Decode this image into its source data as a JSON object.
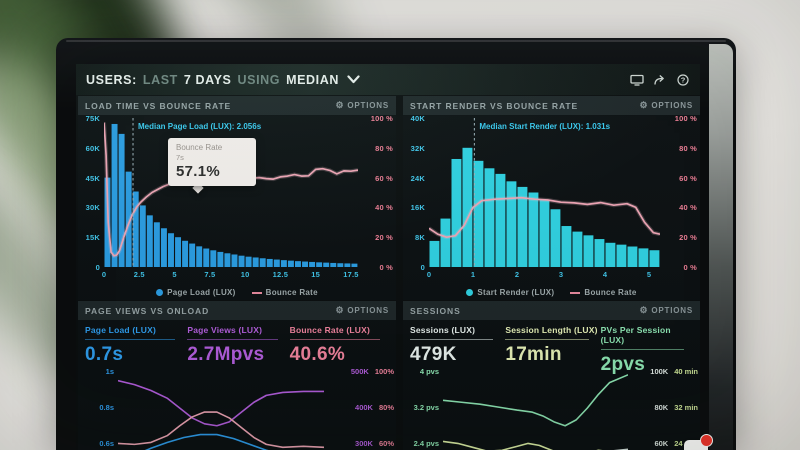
{
  "labels": {
    "options": "OPTIONS"
  },
  "colors": {
    "dashboard_bg": "#0a0e0f",
    "panel_bg": "#0b1012",
    "panel_header_bg": "#1e2729",
    "cyan_axis": "#41c8ec",
    "pink_axis": "#ef7f96",
    "blue_bars": "#2a9de3",
    "cyan_bars": "#2fd2e2",
    "pink_line": "#f0a6b6",
    "purple": "#b55fe0",
    "mint": "#8fe8b5",
    "lime": "#e7f2b8"
  },
  "header": {
    "users": "USERS:",
    "range_prefix": "LAST",
    "range": "7 DAYS",
    "using": "USING",
    "metric": "MEDIAN",
    "icons": [
      "monitor-icon",
      "share-icon",
      "help-icon"
    ]
  },
  "panels": {
    "load_time": {
      "title": "LOAD TIME VS BOUNCE RATE",
      "median_label": "Median Page Load (LUX): 2.056s",
      "tooltip": {
        "title": "Bounce Rate",
        "x_value": "7s",
        "value": "57.1%"
      },
      "legend": [
        {
          "label": "Page Load (LUX)",
          "color": "#2a9de3",
          "marker": "dot"
        },
        {
          "label": "Bounce Rate",
          "color": "#e8899f",
          "marker": "line"
        }
      ],
      "chart": {
        "type": "histogram+line",
        "bar_color": "#2a9de3",
        "line_color": "#f0a6b6",
        "line_glow": "#f5c2cd",
        "x_range": [
          0,
          18
        ],
        "bar_width_x": 0.5,
        "x_ticks": [
          "0",
          "2.5",
          "5",
          "7.5",
          "10",
          "12.5",
          "15",
          "17.5"
        ],
        "x_tick_vals": [
          0,
          2.5,
          5,
          7.5,
          10,
          12.5,
          15,
          17.5
        ],
        "y_left_ticks": [
          "75K",
          "60K",
          "45K",
          "30K",
          "15K",
          "0"
        ],
        "y_left_max": 75,
        "y_right_ticks": [
          "100 %",
          "80 %",
          "60 %",
          "40 %",
          "20 %",
          "0 %"
        ],
        "y_right_max": 100,
        "median_x": 2.056,
        "bars_k": [
          45,
          72,
          67,
          48,
          38,
          31,
          26,
          22.5,
          19.5,
          17,
          15,
          13.2,
          11.8,
          10.4,
          9.3,
          8.4,
          7.6,
          6.9,
          6.3,
          5.7,
          5.2,
          4.8,
          4.4,
          4.05,
          3.75,
          3.45,
          3.2,
          2.95,
          2.75,
          2.55,
          2.35,
          2.2,
          2.05,
          1.9,
          1.8,
          1.7
        ],
        "line_pts": [
          [
            0,
            97
          ],
          [
            0.15,
            75
          ],
          [
            0.3,
            30
          ],
          [
            0.5,
            10
          ],
          [
            0.7,
            7.5
          ],
          [
            0.9,
            8
          ],
          [
            1.1,
            11
          ],
          [
            1.4,
            20
          ],
          [
            1.7,
            28
          ],
          [
            2.0,
            35
          ],
          [
            2.3,
            40
          ],
          [
            2.6,
            43.5
          ],
          [
            3.0,
            47
          ],
          [
            3.4,
            50
          ],
          [
            3.8,
            52
          ],
          [
            4.2,
            54
          ],
          [
            4.6,
            55.5
          ],
          [
            5.0,
            56.5
          ],
          [
            5.5,
            57
          ],
          [
            6.0,
            57.5
          ],
          [
            6.5,
            57.3
          ],
          [
            7.0,
            57.1
          ],
          [
            7.5,
            58
          ],
          [
            8.0,
            58.5
          ],
          [
            8.5,
            59
          ],
          [
            9.0,
            58.3
          ],
          [
            9.5,
            57.8
          ],
          [
            10.0,
            58.5
          ],
          [
            10.5,
            59.5
          ],
          [
            11.0,
            60
          ],
          [
            11.5,
            59.3
          ],
          [
            12.0,
            59
          ],
          [
            12.5,
            60.5
          ],
          [
            13.0,
            61
          ],
          [
            13.5,
            62
          ],
          [
            14.0,
            61
          ],
          [
            14.5,
            61.2
          ],
          [
            15.0,
            65.5
          ],
          [
            15.5,
            66
          ],
          [
            16.0,
            64.8
          ],
          [
            16.5,
            62.5
          ],
          [
            17.0,
            64.5
          ],
          [
            17.5,
            64.3
          ],
          [
            18.0,
            65
          ]
        ]
      }
    },
    "start_render": {
      "title": "START RENDER VS BOUNCE RATE",
      "median_label": "Median Start Render (LUX): 1.031s",
      "legend": [
        {
          "label": "Start Render (LUX)",
          "color": "#2fd2e2",
          "marker": "dot"
        },
        {
          "label": "Bounce Rate",
          "color": "#e8899f",
          "marker": "line"
        }
      ],
      "chart": {
        "type": "histogram+line",
        "bar_color": "#2fd2e2",
        "line_color": "#f0a6b6",
        "line_glow": "#f5c2cd",
        "x_range": [
          0,
          5.25
        ],
        "bar_width_x": 0.25,
        "x_ticks": [
          "0",
          "1",
          "2",
          "3",
          "4",
          "5"
        ],
        "x_tick_vals": [
          0,
          1,
          2,
          3,
          4,
          5
        ],
        "y_left_ticks": [
          "40K",
          "32K",
          "24K",
          "16K",
          "8K",
          "0"
        ],
        "y_left_max": 40,
        "y_right_ticks": [
          "100 %",
          "80 %",
          "60 %",
          "40 %",
          "20 %",
          "0 %"
        ],
        "y_right_max": 100,
        "median_x": 1.031,
        "bars_k": [
          7,
          13,
          29,
          32,
          28.5,
          26.5,
          25,
          23,
          21.5,
          20,
          18,
          15.5,
          11,
          9.5,
          8.5,
          7.5,
          6.5,
          6,
          5.5,
          5,
          4.5
        ],
        "line_pts": [
          [
            0,
            26
          ],
          [
            0.2,
            22
          ],
          [
            0.4,
            20
          ],
          [
            0.6,
            21
          ],
          [
            0.8,
            28
          ],
          [
            1.0,
            40
          ],
          [
            1.2,
            44.5
          ],
          [
            1.5,
            45.5
          ],
          [
            1.8,
            46
          ],
          [
            2.1,
            46.5
          ],
          [
            2.4,
            45.5
          ],
          [
            2.7,
            45
          ],
          [
            3.0,
            43.5
          ],
          [
            3.3,
            43
          ],
          [
            3.6,
            42
          ],
          [
            3.9,
            43.2
          ],
          [
            4.2,
            41.5
          ],
          [
            4.5,
            42.5
          ],
          [
            4.7,
            40
          ],
          [
            4.9,
            30
          ],
          [
            5.1,
            23
          ],
          [
            5.25,
            22
          ]
        ]
      }
    },
    "page_views": {
      "title": "PAGE VIEWS VS ONLOAD",
      "metrics": [
        {
          "label": "Page Load (LUX)",
          "value": "0.7s",
          "color": "#2f9ff0"
        },
        {
          "label": "Page Views (LUX)",
          "value": "2.7Mpvs",
          "color": "#b55fe0"
        },
        {
          "label": "Bounce Rate (LUX)",
          "value": "40.6%",
          "color": "#f2849f"
        }
      ],
      "chart": {
        "type": "line",
        "left_tick_color": "#2f9ff0",
        "left_ticks": [
          {
            "label": "1s",
            "f": 0.04
          },
          {
            "label": "0.8s",
            "f": 0.4
          },
          {
            "label": "0.6s",
            "f": 0.76
          }
        ],
        "right_a_color": "#b55fe0",
        "right_b_color": "#f2849f",
        "right_ticks": [
          {
            "a": "500K",
            "b": "100%",
            "f": 0.04
          },
          {
            "a": "400K",
            "b": "80%",
            "f": 0.4
          },
          {
            "a": "300K",
            "b": "60%",
            "f": 0.76
          }
        ],
        "lines": [
          {
            "name": "page-views-line",
            "color": "#b55fe0",
            "pts": [
              [
                0,
                16
              ],
              [
                8,
                20
              ],
              [
                16,
                26
              ],
              [
                24,
                34
              ],
              [
                30,
                44
              ],
              [
                36,
                54
              ],
              [
                42,
                60
              ],
              [
                48,
                62
              ],
              [
                54,
                58
              ],
              [
                60,
                48
              ],
              [
                66,
                38
              ],
              [
                72,
                31
              ],
              [
                80,
                28
              ],
              [
                90,
                27
              ],
              [
                100,
                27
              ]
            ]
          },
          {
            "name": "bounce-rate-line",
            "color": "#f0a6b6",
            "pts": [
              [
                0,
                80
              ],
              [
                8,
                81
              ],
              [
                16,
                79
              ],
              [
                24,
                72
              ],
              [
                30,
                62
              ],
              [
                36,
                53
              ],
              [
                42,
                48
              ],
              [
                48,
                48
              ],
              [
                54,
                54
              ],
              [
                60,
                64
              ],
              [
                66,
                74
              ],
              [
                72,
                81
              ],
              [
                80,
                84
              ],
              [
                90,
                83
              ],
              [
                100,
                84
              ]
            ]
          },
          {
            "name": "page-load-line",
            "color": "#2f9ff0",
            "pts": [
              [
                0,
                98
              ],
              [
                8,
                92
              ],
              [
                16,
                85
              ],
              [
                24,
                79
              ],
              [
                32,
                74
              ],
              [
                40,
                71
              ],
              [
                48,
                71
              ],
              [
                56,
                75
              ],
              [
                64,
                81
              ],
              [
                72,
                87
              ],
              [
                82,
                92
              ],
              [
                100,
                96
              ]
            ]
          }
        ]
      }
    },
    "sessions": {
      "title": "SESSIONS",
      "metrics": [
        {
          "label": "Sessions (LUX)",
          "value": "479K",
          "color": "#e9f2ef"
        },
        {
          "label": "Session Length (LUX)",
          "value": "17min",
          "color": "#e7f2b8"
        },
        {
          "label": "PVs Per Session (LUX)",
          "value": "2pvs",
          "color": "#8fe8b5"
        }
      ],
      "chart": {
        "type": "line",
        "left_tick_color": "#8fe8b5",
        "left_ticks": [
          {
            "label": "4 pvs",
            "f": 0.04
          },
          {
            "label": "3.2 pvs",
            "f": 0.4
          },
          {
            "label": "2.4 pvs",
            "f": 0.76
          }
        ],
        "right_a_color": "#dfe9e4",
        "right_b_color": "#cfe89a",
        "right_ticks": [
          {
            "a": "100K",
            "b": "40 min",
            "f": 0.04
          },
          {
            "a": "80K",
            "b": "32 min",
            "f": 0.4
          },
          {
            "a": "60K",
            "b": "24 min",
            "f": 0.76
          }
        ],
        "lines": [
          {
            "name": "pvs-per-session-line",
            "color": "#8fe8b5",
            "pts": [
              [
                0,
                36
              ],
              [
                10,
                38
              ],
              [
                20,
                40
              ],
              [
                30,
                43
              ],
              [
                40,
                46
              ],
              [
                48,
                48
              ],
              [
                54,
                52
              ],
              [
                60,
                58
              ],
              [
                66,
                62
              ],
              [
                72,
                56
              ],
              [
                78,
                44
              ],
              [
                84,
                30
              ],
              [
                90,
                18
              ],
              [
                100,
                10
              ]
            ]
          },
          {
            "name": "session-length-line",
            "color": "#dff2a8",
            "pts": [
              [
                0,
                78
              ],
              [
                8,
                80
              ],
              [
                16,
                84
              ],
              [
                24,
                88
              ],
              [
                32,
                87
              ],
              [
                40,
                83
              ],
              [
                46,
                80
              ],
              [
                52,
                82
              ],
              [
                60,
                88
              ],
              [
                68,
                93
              ],
              [
                76,
                91
              ],
              [
                84,
                87
              ],
              [
                92,
                89
              ],
              [
                100,
                91
              ]
            ]
          },
          {
            "name": "sessions-line",
            "color": "#dbe7e2",
            "pts": [
              [
                0,
                99
              ],
              [
                15,
                100
              ],
              [
                30,
                99
              ],
              [
                45,
                100
              ],
              [
                60,
                98
              ],
              [
                70,
                95
              ],
              [
                80,
                91
              ],
              [
                90,
                88
              ],
              [
                100,
                86
              ]
            ]
          }
        ]
      }
    }
  }
}
